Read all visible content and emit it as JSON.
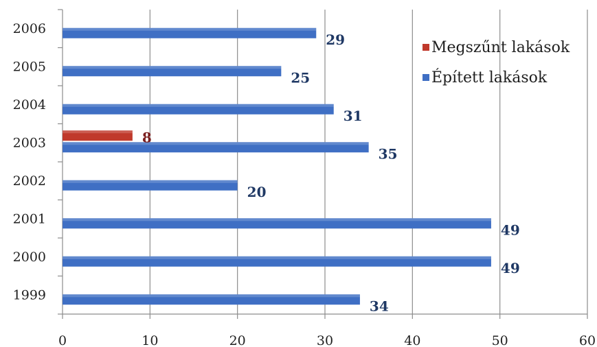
{
  "chart_data": {
    "type": "bar",
    "orientation": "horizontal",
    "categories": [
      "1999",
      "2000",
      "2001",
      "2002",
      "2003",
      "2004",
      "2005",
      "2006"
    ],
    "series": [
      {
        "name": "Épített lakások",
        "color": "#3f6fc4",
        "values": [
          34,
          49,
          49,
          20,
          35,
          31,
          25,
          29
        ]
      },
      {
        "name": "Megszűnt lakások",
        "color": "#c0392b",
        "values": [
          null,
          null,
          null,
          null,
          8,
          null,
          null,
          null
        ]
      }
    ],
    "xlim": [
      0,
      60
    ],
    "xticks": [
      "0",
      "10",
      "20",
      "30",
      "40",
      "50",
      "60"
    ],
    "grid": true,
    "legend_position": "top-right",
    "legend": [
      {
        "label": "Megszűnt lakások",
        "color": "#c0392b"
      },
      {
        "label": "Épített lakások",
        "color": "#3f6fc4"
      }
    ],
    "label_colors": {
      "Épített lakások": "#1f3864",
      "Megszűnt lakások": "#7b1f1f"
    }
  }
}
